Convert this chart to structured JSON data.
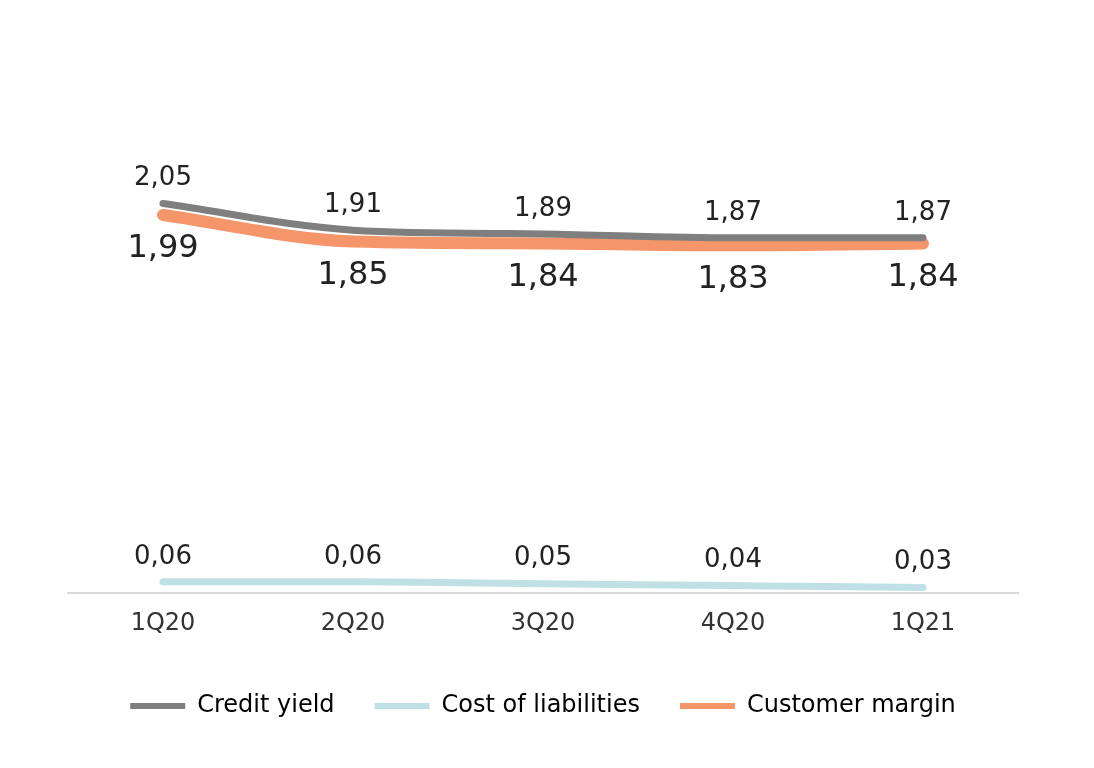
{
  "chart_data": {
    "type": "line",
    "categories": [
      "1Q20",
      "2Q20",
      "3Q20",
      "4Q20",
      "1Q21"
    ],
    "series": [
      {
        "name": "Credit yield",
        "color": "#7f7f7f",
        "values": [
          2.05,
          1.91,
          1.89,
          1.87,
          1.87
        ],
        "value_labels": [
          "2,05",
          "1,91",
          "1,89",
          "1,87",
          "1,87"
        ]
      },
      {
        "name": "Cost of liabilities",
        "color": "#bfe0e4",
        "values": [
          0.06,
          0.06,
          0.05,
          0.04,
          0.03
        ],
        "value_labels": [
          "0,06",
          "0,06",
          "0,05",
          "0,04",
          "0,03"
        ]
      },
      {
        "name": "Customer margin",
        "color": "#f4956a",
        "values": [
          1.99,
          1.85,
          1.84,
          1.83,
          1.84
        ],
        "value_labels": [
          "1,99",
          "1,85",
          "1,84",
          "1,83",
          "1,84"
        ]
      }
    ],
    "grid": false,
    "legend": "bottom",
    "marker": "none",
    "line_style": "solid"
  }
}
